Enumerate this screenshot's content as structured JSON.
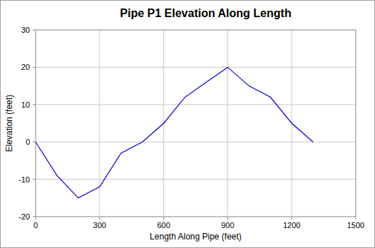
{
  "chart_data": {
    "type": "line",
    "title": "Pipe P1 Elevation Along Length",
    "x_label": "Length Along Pipe (feet)",
    "y_label": "Elevation (feet)",
    "x": [
      0,
      100,
      200,
      300,
      400,
      500,
      600,
      700,
      800,
      900,
      1000,
      1100,
      1200,
      1300
    ],
    "values": [
      0,
      -9,
      -15,
      -12,
      -3,
      0,
      5,
      12,
      16,
      20,
      15,
      12,
      5,
      0
    ],
    "color": "#0000cc",
    "xlim": [
      0,
      1500
    ],
    "xticks": [
      0,
      300,
      600,
      900,
      1200,
      1500
    ],
    "ylim": [
      -20,
      30
    ],
    "yticks": [
      -20,
      -10,
      0,
      10,
      20,
      30
    ],
    "grid": true
  }
}
